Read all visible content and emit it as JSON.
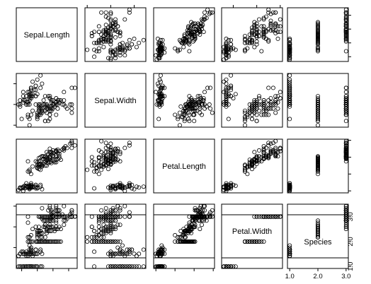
{
  "chart_data": {
    "type": "scatter",
    "variables": [
      "Sepal.Length",
      "Sepal.Width",
      "Petal.Length",
      "Petal.Width",
      "Species"
    ],
    "ranges": {
      "Sepal.Length": [
        4.3,
        7.9
      ],
      "Sepal.Width": [
        2.0,
        4.4
      ],
      "Petal.Length": [
        1.0,
        6.9
      ],
      "Petal.Width": [
        0.1,
        2.5
      ],
      "Species": [
        1.0,
        3.0
      ]
    },
    "ticks": {
      "Sepal.Length": [
        "4.5",
        "5.5",
        "6.5",
        "7.5"
      ],
      "Sepal.Width": [
        "2.0",
        "3.0",
        "4.0"
      ],
      "Petal.Length": [
        "1",
        "3",
        "5",
        "7"
      ],
      "Petal.Width": [
        "0.5",
        "1.5",
        "2.5"
      ],
      "Species": [
        "1.0",
        "2.0",
        "3.0"
      ]
    },
    "grid": false,
    "legend": "none",
    "marker": "open-circle",
    "observations": [
      [
        5.1,
        3.5,
        1.4,
        0.2,
        1
      ],
      [
        4.9,
        3.0,
        1.4,
        0.2,
        1
      ],
      [
        4.7,
        3.2,
        1.3,
        0.2,
        1
      ],
      [
        4.6,
        3.1,
        1.5,
        0.2,
        1
      ],
      [
        5.0,
        3.6,
        1.4,
        0.2,
        1
      ],
      [
        5.4,
        3.9,
        1.7,
        0.4,
        1
      ],
      [
        4.6,
        3.4,
        1.4,
        0.3,
        1
      ],
      [
        5.0,
        3.4,
        1.5,
        0.2,
        1
      ],
      [
        4.4,
        2.9,
        1.4,
        0.2,
        1
      ],
      [
        4.9,
        3.1,
        1.5,
        0.1,
        1
      ],
      [
        5.4,
        3.7,
        1.5,
        0.2,
        1
      ],
      [
        4.8,
        3.4,
        1.6,
        0.2,
        1
      ],
      [
        4.8,
        3.0,
        1.4,
        0.1,
        1
      ],
      [
        4.3,
        3.0,
        1.1,
        0.1,
        1
      ],
      [
        5.8,
        4.0,
        1.2,
        0.2,
        1
      ],
      [
        5.7,
        4.4,
        1.5,
        0.4,
        1
      ],
      [
        5.4,
        3.9,
        1.3,
        0.4,
        1
      ],
      [
        5.1,
        3.5,
        1.4,
        0.3,
        1
      ],
      [
        5.7,
        3.8,
        1.7,
        0.3,
        1
      ],
      [
        5.1,
        3.8,
        1.5,
        0.3,
        1
      ],
      [
        5.4,
        3.4,
        1.7,
        0.2,
        1
      ],
      [
        5.1,
        3.7,
        1.5,
        0.4,
        1
      ],
      [
        4.6,
        3.6,
        1.0,
        0.2,
        1
      ],
      [
        5.1,
        3.3,
        1.7,
        0.5,
        1
      ],
      [
        4.8,
        3.4,
        1.9,
        0.2,
        1
      ],
      [
        5.0,
        3.0,
        1.6,
        0.2,
        1
      ],
      [
        5.0,
        3.4,
        1.6,
        0.4,
        1
      ],
      [
        5.2,
        3.5,
        1.5,
        0.2,
        1
      ],
      [
        5.2,
        3.4,
        1.4,
        0.2,
        1
      ],
      [
        4.7,
        3.2,
        1.6,
        0.2,
        1
      ],
      [
        4.8,
        3.1,
        1.6,
        0.2,
        1
      ],
      [
        5.4,
        3.4,
        1.5,
        0.4,
        1
      ],
      [
        5.2,
        4.1,
        1.5,
        0.1,
        1
      ],
      [
        5.5,
        4.2,
        1.4,
        0.2,
        1
      ],
      [
        4.9,
        3.1,
        1.5,
        0.2,
        1
      ],
      [
        5.0,
        3.2,
        1.2,
        0.2,
        1
      ],
      [
        5.5,
        3.5,
        1.3,
        0.2,
        1
      ],
      [
        4.9,
        3.6,
        1.4,
        0.1,
        1
      ],
      [
        4.4,
        3.0,
        1.3,
        0.2,
        1
      ],
      [
        5.1,
        3.4,
        1.5,
        0.2,
        1
      ],
      [
        5.0,
        3.5,
        1.3,
        0.3,
        1
      ],
      [
        4.5,
        2.3,
        1.3,
        0.3,
        1
      ],
      [
        4.4,
        3.2,
        1.3,
        0.2,
        1
      ],
      [
        5.0,
        3.5,
        1.6,
        0.6,
        1
      ],
      [
        5.1,
        3.8,
        1.9,
        0.4,
        1
      ],
      [
        4.8,
        3.0,
        1.4,
        0.3,
        1
      ],
      [
        5.1,
        3.8,
        1.6,
        0.2,
        1
      ],
      [
        4.6,
        3.2,
        1.4,
        0.2,
        1
      ],
      [
        5.3,
        3.7,
        1.5,
        0.2,
        1
      ],
      [
        5.0,
        3.3,
        1.4,
        0.2,
        1
      ],
      [
        7.0,
        3.2,
        4.7,
        1.4,
        2
      ],
      [
        6.4,
        3.2,
        4.5,
        1.5,
        2
      ],
      [
        6.9,
        3.1,
        4.9,
        1.5,
        2
      ],
      [
        5.5,
        2.3,
        4.0,
        1.3,
        2
      ],
      [
        6.5,
        2.8,
        4.6,
        1.5,
        2
      ],
      [
        5.7,
        2.8,
        4.5,
        1.3,
        2
      ],
      [
        6.3,
        3.3,
        4.7,
        1.6,
        2
      ],
      [
        4.9,
        2.4,
        3.3,
        1.0,
        2
      ],
      [
        6.6,
        2.9,
        4.6,
        1.3,
        2
      ],
      [
        5.2,
        2.7,
        3.9,
        1.4,
        2
      ],
      [
        5.0,
        2.0,
        3.5,
        1.0,
        2
      ],
      [
        5.9,
        3.0,
        4.2,
        1.5,
        2
      ],
      [
        6.0,
        2.2,
        4.0,
        1.0,
        2
      ],
      [
        6.1,
        2.9,
        4.7,
        1.4,
        2
      ],
      [
        5.6,
        2.9,
        3.6,
        1.3,
        2
      ],
      [
        6.7,
        3.1,
        4.4,
        1.4,
        2
      ],
      [
        5.6,
        3.0,
        4.5,
        1.5,
        2
      ],
      [
        5.8,
        2.7,
        4.1,
        1.0,
        2
      ],
      [
        6.2,
        2.2,
        4.5,
        1.5,
        2
      ],
      [
        5.6,
        2.5,
        3.9,
        1.1,
        2
      ],
      [
        5.9,
        3.2,
        4.8,
        1.8,
        2
      ],
      [
        6.1,
        2.8,
        4.0,
        1.3,
        2
      ],
      [
        6.3,
        2.5,
        4.9,
        1.5,
        2
      ],
      [
        6.1,
        2.8,
        4.7,
        1.2,
        2
      ],
      [
        6.4,
        2.9,
        4.3,
        1.3,
        2
      ],
      [
        6.6,
        3.0,
        4.4,
        1.4,
        2
      ],
      [
        6.8,
        2.8,
        4.8,
        1.4,
        2
      ],
      [
        6.7,
        3.0,
        5.0,
        1.7,
        2
      ],
      [
        6.0,
        2.9,
        4.5,
        1.5,
        2
      ],
      [
        5.7,
        2.6,
        3.5,
        1.0,
        2
      ],
      [
        5.5,
        2.4,
        3.8,
        1.1,
        2
      ],
      [
        5.5,
        2.4,
        3.7,
        1.0,
        2
      ],
      [
        5.8,
        2.7,
        3.9,
        1.2,
        2
      ],
      [
        6.0,
        2.7,
        5.1,
        1.6,
        2
      ],
      [
        5.4,
        3.0,
        4.5,
        1.5,
        2
      ],
      [
        6.0,
        3.4,
        4.5,
        1.6,
        2
      ],
      [
        6.7,
        3.1,
        4.7,
        1.5,
        2
      ],
      [
        6.3,
        2.3,
        4.4,
        1.3,
        2
      ],
      [
        5.6,
        3.0,
        4.1,
        1.3,
        2
      ],
      [
        5.5,
        2.5,
        4.0,
        1.3,
        2
      ],
      [
        5.5,
        2.6,
        4.4,
        1.2,
        2
      ],
      [
        6.1,
        3.0,
        4.6,
        1.4,
        2
      ],
      [
        5.8,
        2.6,
        4.0,
        1.2,
        2
      ],
      [
        5.0,
        2.3,
        3.3,
        1.0,
        2
      ],
      [
        5.6,
        2.7,
        4.2,
        1.3,
        2
      ],
      [
        5.7,
        3.0,
        4.2,
        1.2,
        2
      ],
      [
        5.7,
        2.9,
        4.2,
        1.3,
        2
      ],
      [
        6.2,
        2.9,
        4.3,
        1.3,
        2
      ],
      [
        5.1,
        2.5,
        3.0,
        1.1,
        2
      ],
      [
        5.7,
        2.8,
        4.1,
        1.3,
        2
      ],
      [
        6.3,
        3.3,
        6.0,
        2.5,
        3
      ],
      [
        5.8,
        2.7,
        5.1,
        1.9,
        3
      ],
      [
        7.1,
        3.0,
        5.9,
        2.1,
        3
      ],
      [
        6.3,
        2.9,
        5.6,
        1.8,
        3
      ],
      [
        6.5,
        3.0,
        5.8,
        2.2,
        3
      ],
      [
        7.6,
        3.0,
        6.6,
        2.1,
        3
      ],
      [
        4.9,
        2.5,
        4.5,
        1.7,
        3
      ],
      [
        7.3,
        2.9,
        6.3,
        1.8,
        3
      ],
      [
        6.7,
        2.5,
        5.8,
        1.8,
        3
      ],
      [
        7.2,
        3.6,
        6.1,
        2.5,
        3
      ],
      [
        6.5,
        3.2,
        5.1,
        2.0,
        3
      ],
      [
        6.4,
        2.7,
        5.3,
        1.9,
        3
      ],
      [
        6.8,
        3.0,
        5.5,
        2.1,
        3
      ],
      [
        5.7,
        2.5,
        5.0,
        2.0,
        3
      ],
      [
        5.8,
        2.8,
        5.1,
        2.4,
        3
      ],
      [
        6.4,
        3.2,
        5.3,
        2.3,
        3
      ],
      [
        6.5,
        3.0,
        5.5,
        1.8,
        3
      ],
      [
        7.7,
        3.8,
        6.7,
        2.2,
        3
      ],
      [
        7.7,
        2.6,
        6.9,
        2.3,
        3
      ],
      [
        6.0,
        2.2,
        5.0,
        1.5,
        3
      ],
      [
        6.9,
        3.2,
        5.7,
        2.3,
        3
      ],
      [
        5.6,
        2.8,
        4.9,
        2.0,
        3
      ],
      [
        7.7,
        2.8,
        6.7,
        2.0,
        3
      ],
      [
        6.3,
        2.7,
        4.9,
        1.8,
        3
      ],
      [
        6.7,
        3.3,
        5.7,
        2.1,
        3
      ],
      [
        7.2,
        3.2,
        6.0,
        1.8,
        3
      ],
      [
        6.2,
        2.8,
        4.8,
        1.8,
        3
      ],
      [
        6.1,
        3.0,
        4.9,
        1.8,
        3
      ],
      [
        6.4,
        2.8,
        5.6,
        2.1,
        3
      ],
      [
        7.2,
        3.0,
        5.8,
        1.6,
        3
      ],
      [
        7.4,
        2.8,
        6.1,
        1.9,
        3
      ],
      [
        7.9,
        3.8,
        6.4,
        2.0,
        3
      ],
      [
        6.4,
        2.8,
        5.6,
        2.2,
        3
      ],
      [
        6.3,
        2.8,
        5.1,
        1.5,
        3
      ],
      [
        6.1,
        2.6,
        5.6,
        1.4,
        3
      ],
      [
        7.7,
        3.0,
        6.1,
        2.3,
        3
      ],
      [
        6.3,
        3.4,
        5.6,
        2.4,
        3
      ],
      [
        6.4,
        3.1,
        5.5,
        1.8,
        3
      ],
      [
        6.0,
        3.0,
        4.8,
        1.8,
        3
      ],
      [
        6.9,
        3.1,
        5.4,
        2.1,
        3
      ],
      [
        6.7,
        3.1,
        5.6,
        2.4,
        3
      ],
      [
        6.9,
        3.1,
        5.1,
        2.3,
        3
      ],
      [
        5.8,
        2.7,
        5.1,
        1.9,
        3
      ],
      [
        6.8,
        3.2,
        5.9,
        2.3,
        3
      ],
      [
        6.7,
        3.3,
        5.7,
        2.5,
        3
      ],
      [
        6.7,
        3.0,
        5.2,
        2.3,
        3
      ],
      [
        6.3,
        2.5,
        5.0,
        1.9,
        3
      ],
      [
        6.5,
        3.0,
        5.2,
        2.0,
        3
      ],
      [
        6.2,
        3.4,
        5.4,
        2.3,
        3
      ],
      [
        5.9,
        3.0,
        5.1,
        1.8,
        3
      ]
    ]
  }
}
